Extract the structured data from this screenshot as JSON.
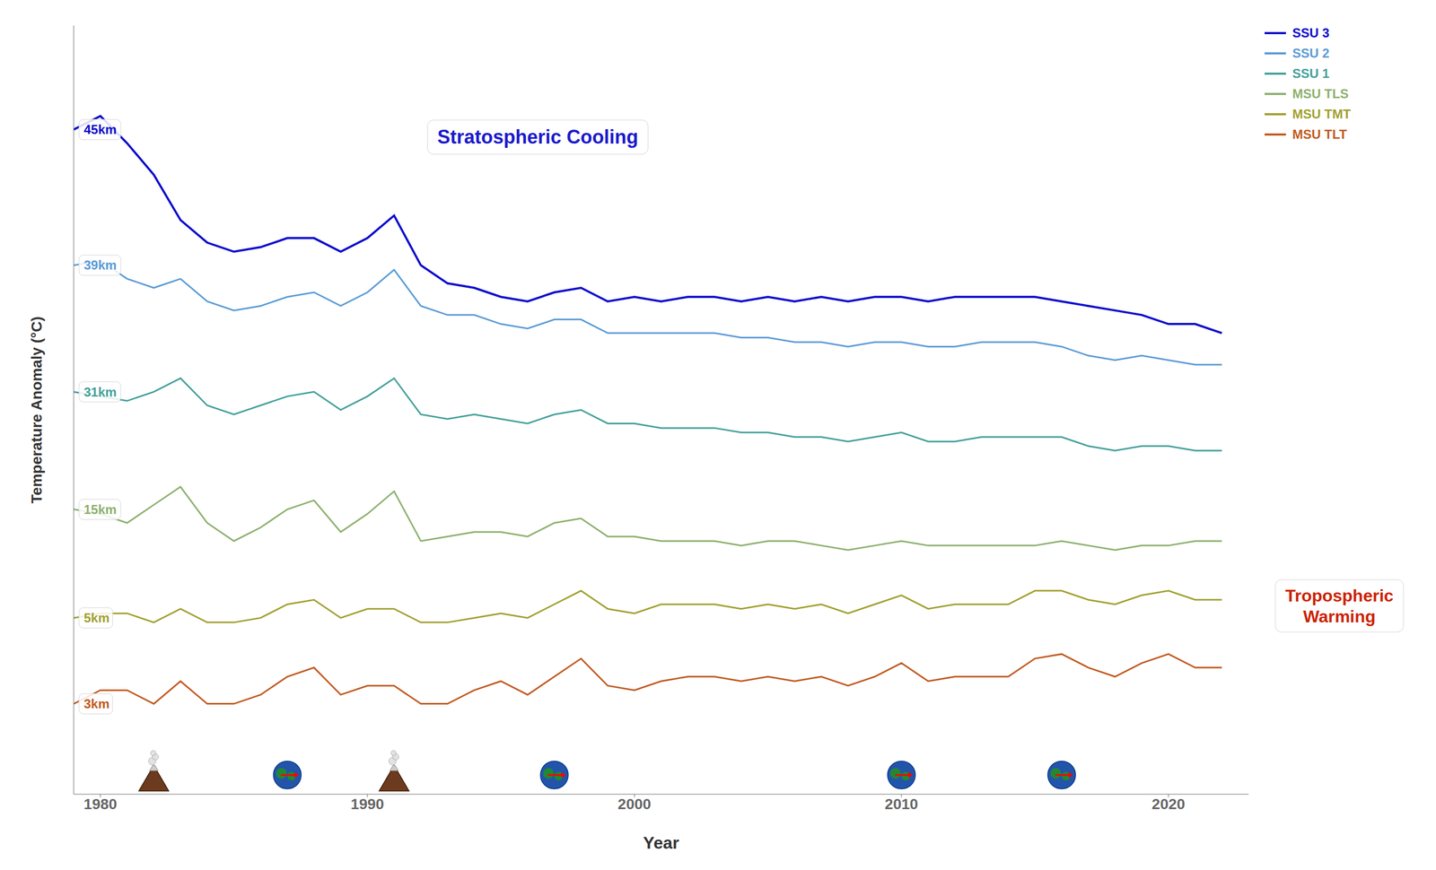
{
  "chart_data": {
    "type": "line",
    "xlabel": "Year",
    "ylabel": "Temperature Anomaly (°C)",
    "x": [
      1979,
      1980,
      1981,
      1982,
      1983,
      1984,
      1985,
      1986,
      1987,
      1988,
      1989,
      1990,
      1991,
      1992,
      1993,
      1994,
      1995,
      1996,
      1997,
      1998,
      1999,
      2000,
      2001,
      2002,
      2003,
      2004,
      2005,
      2006,
      2007,
      2008,
      2009,
      2010,
      2011,
      2012,
      2013,
      2014,
      2015,
      2016,
      2017,
      2018,
      2019,
      2020,
      2021,
      2022
    ],
    "series": [
      {
        "name": "SSU 3",
        "color": "#0a09cc",
        "values": [
          1.2,
          1.5,
          0.9,
          0.2,
          -0.8,
          -1.3,
          -1.5,
          -1.4,
          -1.2,
          -1.2,
          -1.5,
          -1.2,
          -0.7,
          -1.8,
          -2.2,
          -2.3,
          -2.5,
          -2.6,
          -2.4,
          -2.3,
          -2.6,
          -2.5,
          -2.6,
          -2.5,
          -2.5,
          -2.6,
          -2.5,
          -2.6,
          -2.5,
          -2.6,
          -2.5,
          -2.5,
          -2.6,
          -2.5,
          -2.5,
          -2.5,
          -2.5,
          -2.6,
          -2.7,
          -2.8,
          -2.9,
          -3.1,
          -3.1,
          -3.3
        ]
      },
      {
        "name": "SSU 2",
        "color": "#5b9bd5",
        "values": [
          -1.8,
          -1.7,
          -2.1,
          -2.3,
          -2.1,
          -2.6,
          -2.8,
          -2.7,
          -2.5,
          -2.4,
          -2.7,
          -2.4,
          -1.9,
          -2.7,
          -2.9,
          -2.9,
          -3.1,
          -3.2,
          -3.0,
          -3.0,
          -3.3,
          -3.3,
          -3.3,
          -3.3,
          -3.3,
          -3.4,
          -3.4,
          -3.5,
          -3.5,
          -3.6,
          -3.5,
          -3.5,
          -3.6,
          -3.6,
          -3.5,
          -3.5,
          -3.5,
          -3.6,
          -3.8,
          -3.9,
          -3.8,
          -3.9,
          -4.0,
          -4.0
        ]
      },
      {
        "name": "SSU 1",
        "color": "#44a09a",
        "values": [
          -4.6,
          -4.7,
          -4.8,
          -4.6,
          -4.3,
          -4.9,
          -5.1,
          -4.9,
          -4.7,
          -4.6,
          -5.0,
          -4.7,
          -4.3,
          -5.1,
          -5.2,
          -5.1,
          -5.2,
          -5.3,
          -5.1,
          -5.0,
          -5.3,
          -5.3,
          -5.4,
          -5.4,
          -5.4,
          -5.5,
          -5.5,
          -5.6,
          -5.6,
          -5.7,
          -5.6,
          -5.5,
          -5.7,
          -5.7,
          -5.6,
          -5.6,
          -5.6,
          -5.6,
          -5.8,
          -5.9,
          -5.8,
          -5.8,
          -5.9,
          -5.9
        ]
      },
      {
        "name": "MSU TLS",
        "color": "#8db06e",
        "values": [
          -7.2,
          -7.3,
          -7.5,
          -7.1,
          -6.7,
          -7.5,
          -7.9,
          -7.6,
          -7.2,
          -7.0,
          -7.7,
          -7.3,
          -6.8,
          -7.9,
          -7.8,
          -7.7,
          -7.7,
          -7.8,
          -7.5,
          -7.4,
          -7.8,
          -7.8,
          -7.9,
          -7.9,
          -7.9,
          -8.0,
          -7.9,
          -7.9,
          -8.0,
          -8.1,
          -8.0,
          -7.9,
          -8.0,
          -8.0,
          -8.0,
          -8.0,
          -8.0,
          -7.9,
          -8.0,
          -8.1,
          -8.0,
          -8.0,
          -7.9,
          -7.9
        ]
      },
      {
        "name": "MSU TMT",
        "color": "#a0a030",
        "values": [
          -9.6,
          -9.5,
          -9.5,
          -9.7,
          -9.4,
          -9.7,
          -9.7,
          -9.6,
          -9.3,
          -9.2,
          -9.6,
          -9.4,
          -9.4,
          -9.7,
          -9.7,
          -9.6,
          -9.5,
          -9.6,
          -9.3,
          -9.0,
          -9.4,
          -9.5,
          -9.3,
          -9.3,
          -9.3,
          -9.4,
          -9.3,
          -9.4,
          -9.3,
          -9.5,
          -9.3,
          -9.1,
          -9.4,
          -9.3,
          -9.3,
          -9.3,
          -9.0,
          -9.0,
          -9.2,
          -9.3,
          -9.1,
          -9.0,
          -9.2,
          -9.2
        ]
      },
      {
        "name": "MSU TLT",
        "color": "#c05a20",
        "values": [
          -11.5,
          -11.2,
          -11.2,
          -11.5,
          -11.0,
          -11.5,
          -11.5,
          -11.3,
          -10.9,
          -10.7,
          -11.3,
          -11.1,
          -11.1,
          -11.5,
          -11.5,
          -11.2,
          -11.0,
          -11.3,
          -10.9,
          -10.5,
          -11.1,
          -11.2,
          -11.0,
          -10.9,
          -10.9,
          -11.0,
          -10.9,
          -11.0,
          -10.9,
          -11.1,
          -10.9,
          -10.6,
          -11.0,
          -10.9,
          -10.9,
          -10.9,
          -10.5,
          -10.4,
          -10.7,
          -10.9,
          -10.6,
          -10.4,
          -10.7,
          -10.7
        ]
      }
    ],
    "xlim": [
      1979,
      2023
    ],
    "xticks": [
      1980,
      1990,
      2000,
      2010,
      2020
    ],
    "ylim": [
      -13.5,
      3.5
    ],
    "yticks": [],
    "tick_labels": "x",
    "grid": false,
    "legend": "upper right",
    "annotations": [
      {
        "text": "45km",
        "series": "SSU 3",
        "color": "#0a09cc"
      },
      {
        "text": "39km",
        "series": "SSU 2",
        "color": "#5b9bd5"
      },
      {
        "text": "31km",
        "series": "SSU 1",
        "color": "#44a09a"
      },
      {
        "text": "15km",
        "series": "MSU TLS",
        "color": "#8db06e"
      },
      {
        "text": "5km",
        "series": "MSU TMT",
        "color": "#a0a030"
      },
      {
        "text": "3km",
        "series": "MSU TLT",
        "color": "#c05a20"
      },
      {
        "text": "Stratospheric Cooling",
        "color": "#1a1acc"
      },
      {
        "text": "Tropospheric\nWarming",
        "color": "#cc2200"
      }
    ],
    "volcano_years": [
      1982,
      1991
    ],
    "elnino_years": [
      1987,
      1997,
      2010,
      2016
    ]
  }
}
